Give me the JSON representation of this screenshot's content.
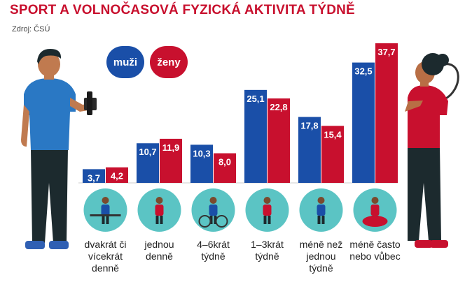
{
  "title": "SPORT A VOLNOČASOVÁ FYZICKÁ AKTIVITA TÝDNĚ",
  "source": "Zdroj: ČSÚ",
  "legend": {
    "men": "muži",
    "women": "ženy"
  },
  "colors": {
    "men": "#1a4fa8",
    "women": "#c8102e",
    "title": "#c8102e",
    "icon_bg": "#5bc4c4"
  },
  "chart_data": {
    "type": "bar",
    "title": "SPORT A VOLNOČASOVÁ FYZICKÁ AKTIVITA TÝDNĚ",
    "categories": [
      "dvakrát či vícekrát denně",
      "jednou denně",
      "4–6krát týdně",
      "1–3krát týdně",
      "méně než jednou týdně",
      "méně často nebo vůbec"
    ],
    "category_lines": [
      [
        "dvakrát či",
        "vícekrát",
        "denně"
      ],
      [
        "jednou",
        "denně"
      ],
      [
        "4–6krát",
        "týdně"
      ],
      [
        "1–3krát",
        "týdně"
      ],
      [
        "méně než",
        "jednou",
        "týdně"
      ],
      [
        "méně často",
        "nebo vůbec"
      ]
    ],
    "series": [
      {
        "name": "muži",
        "values": [
          3.7,
          10.7,
          10.3,
          25.1,
          17.8,
          32.5
        ],
        "labels": [
          "3,7",
          "10,7",
          "10,3",
          "25,1",
          "17,8",
          "32,5"
        ]
      },
      {
        "name": "ženy",
        "values": [
          4.2,
          11.9,
          8.0,
          22.8,
          15.4,
          37.7
        ],
        "labels": [
          "4,2",
          "11,9",
          "8,0",
          "22,8",
          "15,4",
          "37,7"
        ]
      }
    ],
    "ylim": [
      0,
      37.7
    ],
    "grid": false,
    "legend_position": "top-left"
  },
  "icons": [
    "weightlifting-icon",
    "dog-walking-icon",
    "cycling-icon",
    "running-icon",
    "stretching-icon",
    "reading-icon"
  ]
}
